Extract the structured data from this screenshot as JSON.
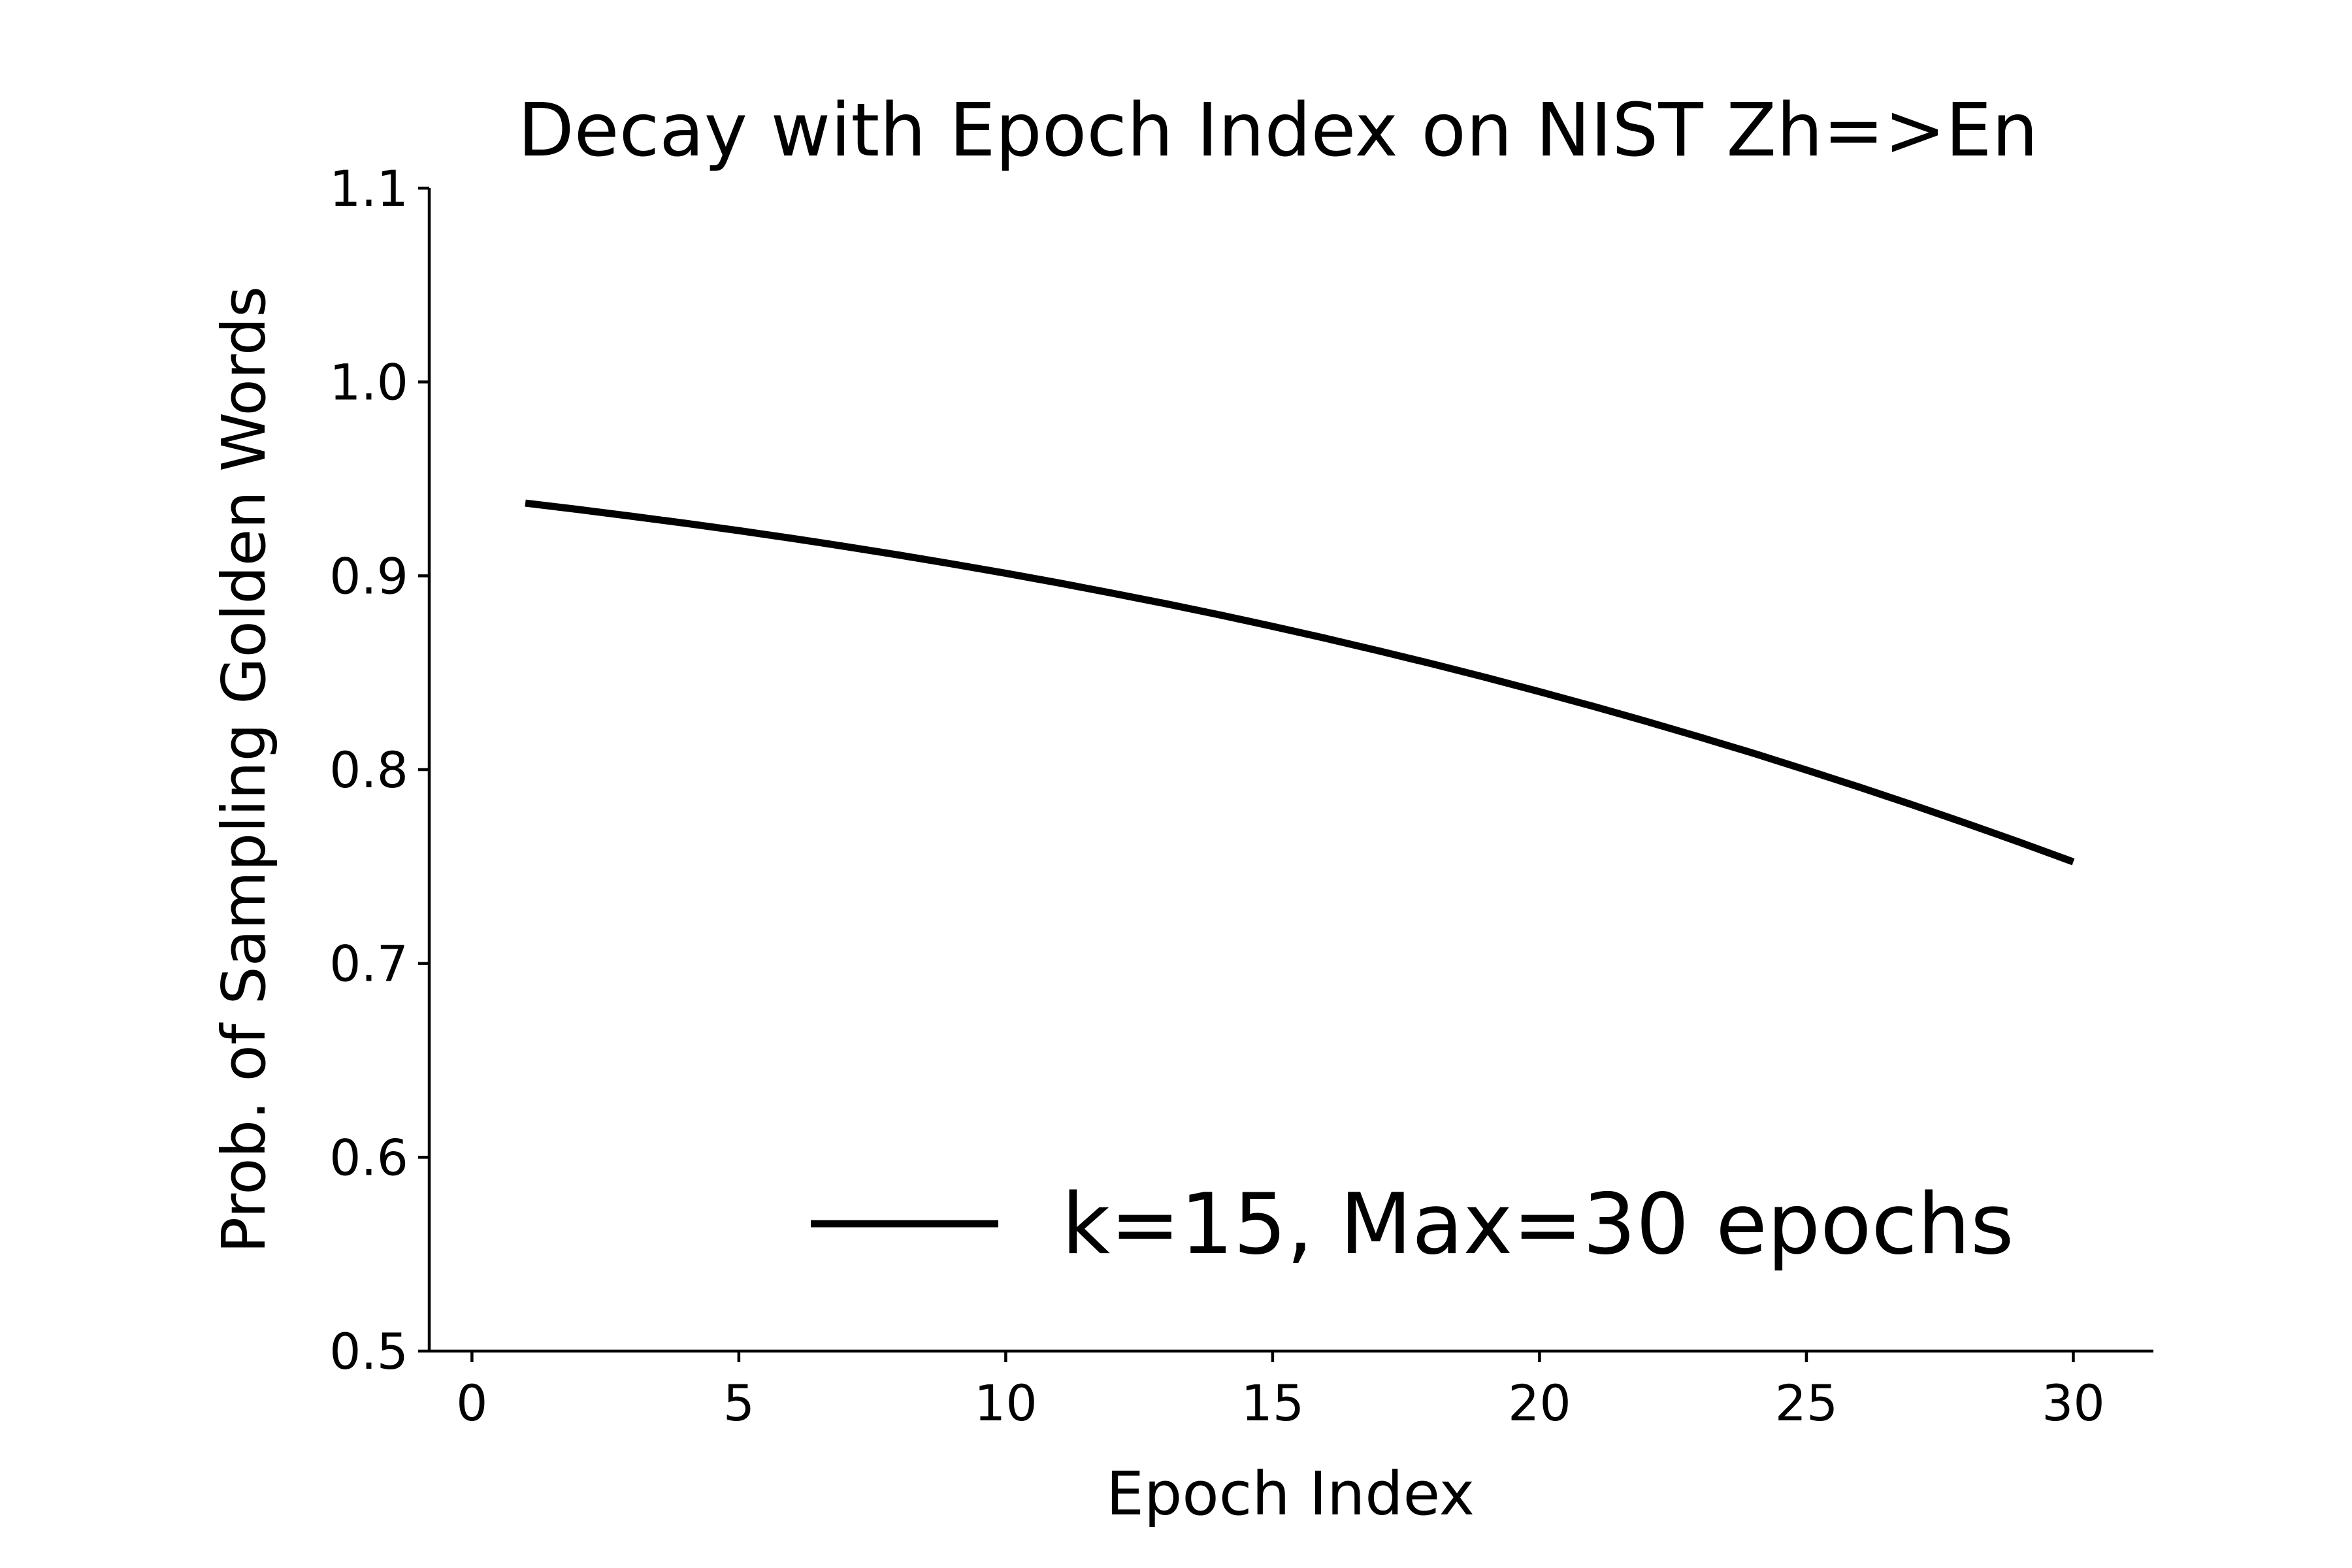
{
  "chart_data": {
    "type": "line",
    "title": "Decay with Epoch Index on NIST Zh=>En",
    "xlabel": "Epoch Index",
    "ylabel": "Prob. of Sampling Golden Words",
    "xlim": [
      -0.8,
      31.5
    ],
    "ylim": [
      0.5,
      1.1
    ],
    "x_ticks": [
      0,
      5,
      10,
      15,
      20,
      25,
      30
    ],
    "y_ticks": [
      0.5,
      0.6,
      0.7,
      0.8,
      0.9,
      1.0,
      1.1
    ],
    "x_tick_labels": [
      "0",
      "5",
      "10",
      "15",
      "20",
      "25",
      "30"
    ],
    "y_tick_labels": [
      "0.5",
      "0.6",
      "0.7",
      "0.8",
      "0.9",
      "1.0",
      "1.1"
    ],
    "grid": false,
    "legend_position": "lower-right",
    "series": [
      {
        "name": "k=15, Max=30 epochs",
        "color": "#000000",
        "x": [
          1,
          2,
          3,
          4,
          5,
          6,
          7,
          8,
          9,
          10,
          11,
          12,
          13,
          14,
          15,
          16,
          17,
          18,
          19,
          20,
          21,
          22,
          23,
          24,
          25,
          26,
          27,
          28,
          29,
          30
        ],
        "y": [
          0.9375,
          0.9342,
          0.9307,
          0.9271,
          0.9233,
          0.9193,
          0.9151,
          0.9107,
          0.9061,
          0.9013,
          0.8963,
          0.891,
          0.8856,
          0.8799,
          0.8739,
          0.8677,
          0.8612,
          0.8545,
          0.8475,
          0.8402,
          0.8327,
          0.8249,
          0.8168,
          0.8085,
          0.7998,
          0.7909,
          0.7817,
          0.7722,
          0.7625,
          0.7524
        ]
      }
    ]
  }
}
